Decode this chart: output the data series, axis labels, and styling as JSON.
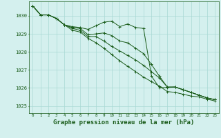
{
  "background_color": "#d4f0ee",
  "grid_color": "#a8d8d4",
  "line_color": "#1a5c1a",
  "xlabel": "Graphe pression niveau de la mer (hPa)",
  "xlabel_fontsize": 6.5,
  "ylabel_ticks": [
    1025,
    1026,
    1027,
    1028,
    1029,
    1030
  ],
  "xlim_min": -0.5,
  "xlim_max": 23.5,
  "ylim_min": 1024.6,
  "ylim_max": 1030.8,
  "xticks": [
    0,
    1,
    2,
    3,
    4,
    5,
    6,
    7,
    8,
    9,
    10,
    11,
    12,
    13,
    14,
    15,
    16,
    17,
    18,
    19,
    20,
    21,
    22,
    23
  ],
  "series": {
    "line1": [
      1030.55,
      1030.05,
      1030.05,
      1029.85,
      1029.5,
      1029.4,
      1029.35,
      1029.25,
      1029.45,
      1029.65,
      1029.7,
      1029.4,
      1029.55,
      1029.35,
      1029.3,
      1026.65,
      1026.02,
      1026.02,
      1026.05,
      1025.9,
      1025.75,
      1025.6,
      1025.45,
      1025.35
    ],
    "line2": [
      1030.55,
      1030.05,
      1030.05,
      1029.85,
      1029.5,
      1029.35,
      1029.3,
      1028.95,
      1029.0,
      1029.05,
      1028.9,
      1028.6,
      1028.5,
      1028.2,
      1027.9,
      1027.3,
      1026.65,
      1026.05,
      1026.05,
      1025.9,
      1025.75,
      1025.6,
      1025.45,
      1025.35
    ],
    "line3": [
      1030.55,
      1030.05,
      1030.05,
      1029.85,
      1029.5,
      1029.3,
      1029.2,
      1028.85,
      1028.85,
      1028.6,
      1028.3,
      1028.05,
      1027.8,
      1027.55,
      1027.25,
      1026.9,
      1026.55,
      1026.05,
      1026.05,
      1025.9,
      1025.75,
      1025.6,
      1025.45,
      1025.35
    ],
    "line4": [
      1030.55,
      1030.05,
      1030.05,
      1029.85,
      1029.5,
      1029.2,
      1029.1,
      1028.75,
      1028.5,
      1028.2,
      1027.85,
      1027.5,
      1027.2,
      1026.9,
      1026.6,
      1026.35,
      1026.1,
      1025.8,
      1025.75,
      1025.65,
      1025.55,
      1025.5,
      1025.38,
      1025.28
    ]
  }
}
